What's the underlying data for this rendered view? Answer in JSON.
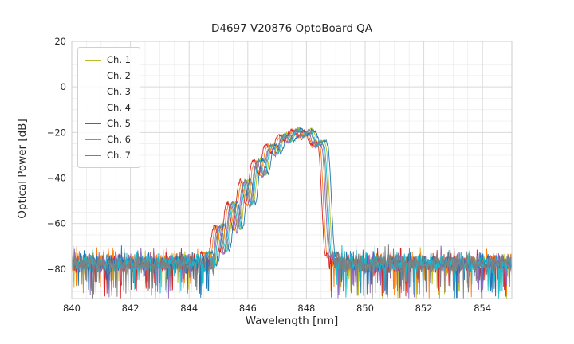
{
  "style": {
    "background": "#ffffff",
    "text_color": "#262626",
    "grid_major_color": "#d9d9d9",
    "grid_minor_color": "#ececec",
    "frame_color": "#cccccc"
  },
  "chart_data": {
    "type": "line",
    "title": "D4697 V20876 OptoBoard QA",
    "xlabel": "Wavelength [nm]",
    "ylabel": "Optical Power [dB]",
    "xlim": [
      840,
      855
    ],
    "ylim": [
      -93,
      20
    ],
    "xticks": [
      840,
      842,
      844,
      846,
      848,
      850,
      852,
      854
    ],
    "yticks": [
      20,
      0,
      -20,
      -40,
      -60,
      -80
    ],
    "x_minor_step": 0.5,
    "y_minor_step": 5,
    "grid": "major+minor",
    "legend_position": "upper-left",
    "sample_step_nm": 0.015,
    "noise_floor": {
      "base_db": -77.5,
      "band_db": 11,
      "up_spike_prob": 0.06,
      "up_spike_db": 5,
      "down_spike_prob": 0.1,
      "down_spike_db": 15
    },
    "mode_structure": {
      "first_peak_nm": 845.9,
      "spacing_nm": 0.44,
      "depth_slope": 0.65,
      "depth_min_db": 3,
      "depth_max_db": 16,
      "ref_peak_db": -18.5
    },
    "envelope_db": [
      [
        844.55,
        -74
      ],
      [
        844.9,
        -64
      ],
      [
        845.3,
        -55
      ],
      [
        845.7,
        -46
      ],
      [
        846.1,
        -37
      ],
      [
        846.5,
        -29.5
      ],
      [
        846.9,
        -24
      ],
      [
        847.3,
        -20.5
      ],
      [
        847.6,
        -19
      ],
      [
        847.9,
        -18.5
      ],
      [
        848.15,
        -19.5
      ],
      [
        848.4,
        -21.5
      ],
      [
        848.6,
        -26
      ],
      [
        848.72,
        -40
      ],
      [
        848.82,
        -62
      ],
      [
        848.95,
        -76
      ]
    ],
    "series": [
      {
        "name": "Ch. 1",
        "color": "#bcbd22",
        "shift_nm": 0.08,
        "offset_db": 0.5,
        "seed": 101
      },
      {
        "name": "Ch. 2",
        "color": "#ff7f0e",
        "shift_nm": -0.12,
        "offset_db": -0.5,
        "seed": 202
      },
      {
        "name": "Ch. 3",
        "color": "#d62728",
        "shift_nm": -0.18,
        "offset_db": 0,
        "seed": 303
      },
      {
        "name": "Ch. 4",
        "color": "#9467bd",
        "shift_nm": -0.05,
        "offset_db": -1,
        "seed": 404
      },
      {
        "name": "Ch. 5",
        "color": "#1f77b4",
        "shift_nm": 0.15,
        "offset_db": 0.3,
        "seed": 505
      },
      {
        "name": "Ch. 6",
        "color": "#17becf",
        "shift_nm": 0.03,
        "offset_db": -0.2,
        "seed": 606
      },
      {
        "name": "Ch. 7",
        "color": "#7f7f7f",
        "shift_nm": -0.01,
        "offset_db": 0,
        "seed": 707
      }
    ]
  }
}
